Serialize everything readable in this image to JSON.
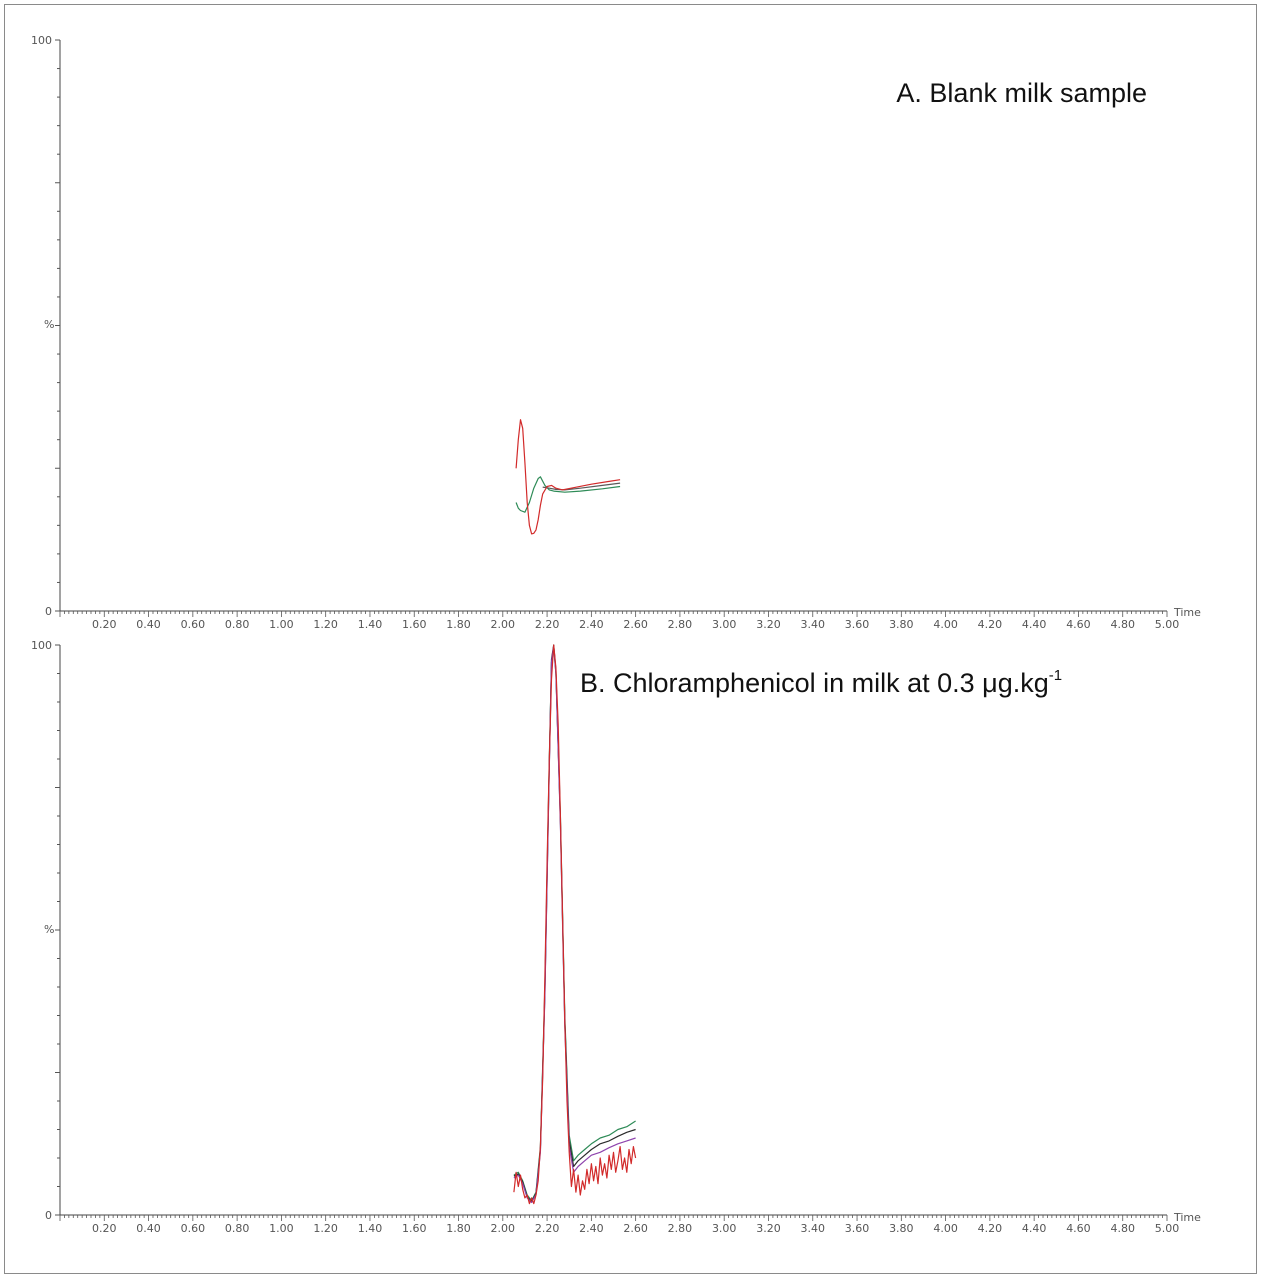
{
  "chart_data": [
    {
      "type": "line",
      "title": "A. Blank milk sample",
      "title_sup": "",
      "xlabel": "Time",
      "ylabel": "%",
      "xlim": [
        0,
        5.0
      ],
      "ylim": [
        0,
        100
      ],
      "x_ticks": [
        "0.20",
        "0.40",
        "0.60",
        "0.80",
        "1.00",
        "1.20",
        "1.40",
        "1.60",
        "1.80",
        "2.00",
        "2.20",
        "2.40",
        "2.60",
        "2.80",
        "3.00",
        "3.20",
        "3.40",
        "3.60",
        "3.80",
        "4.00",
        "4.20",
        "4.40",
        "4.60",
        "4.80",
        "5.00"
      ],
      "y_ticks": [
        "0",
        "100"
      ],
      "series": [
        {
          "color": "#2e8b57",
          "x": [
            2.06,
            2.07,
            2.08,
            2.1,
            2.12,
            2.14,
            2.16,
            2.17,
            2.19,
            2.21,
            2.23,
            2.28,
            2.35,
            2.45,
            2.53
          ],
          "y": [
            19.0,
            18.0,
            17.6,
            17.3,
            19.0,
            21.5,
            23.2,
            23.5,
            22.0,
            21.2,
            21.0,
            20.8,
            21.0,
            21.4,
            21.8
          ]
        },
        {
          "color": "#5a5a5a",
          "x": [
            2.18,
            2.21,
            2.24,
            2.28,
            2.35,
            2.45,
            2.53
          ],
          "y": [
            21.7,
            21.5,
            21.3,
            21.2,
            21.5,
            22.0,
            22.4
          ]
        },
        {
          "color": "#d22a2a",
          "x": [
            2.06,
            2.07,
            2.08,
            2.09,
            2.1,
            2.11,
            2.12,
            2.13,
            2.14,
            2.15,
            2.16,
            2.17,
            2.18,
            2.2,
            2.22,
            2.24,
            2.27,
            2.32,
            2.4,
            2.48,
            2.53
          ],
          "y": [
            25.0,
            30.0,
            33.5,
            32.0,
            26.0,
            19.0,
            15.0,
            13.5,
            13.6,
            14.2,
            16.0,
            18.5,
            20.5,
            21.8,
            22.0,
            21.5,
            21.2,
            21.6,
            22.2,
            22.7,
            23.0
          ]
        }
      ]
    },
    {
      "type": "line",
      "title": "B. Chloramphenicol in milk at 0.3 μg.kg",
      "title_sup": "-1",
      "xlabel": "Time",
      "ylabel": "%",
      "xlim": [
        0,
        5.0
      ],
      "ylim": [
        0,
        100
      ],
      "x_ticks": [
        "0.20",
        "0.40",
        "0.60",
        "0.80",
        "1.00",
        "1.20",
        "1.40",
        "1.60",
        "1.80",
        "2.00",
        "2.20",
        "2.40",
        "2.60",
        "2.80",
        "3.00",
        "3.20",
        "3.40",
        "3.60",
        "3.80",
        "4.00",
        "4.20",
        "4.40",
        "4.60",
        "4.80",
        "5.00"
      ],
      "y_ticks": [
        "0",
        "100"
      ],
      "series": [
        {
          "color": "#2e8b57",
          "x": [
            2.05,
            2.07,
            2.09,
            2.11,
            2.13,
            2.15,
            2.17,
            2.19,
            2.21,
            2.22,
            2.23,
            2.24,
            2.26,
            2.28,
            2.3,
            2.32,
            2.34,
            2.37,
            2.4,
            2.44,
            2.48,
            2.52,
            2.56,
            2.6
          ],
          "y": [
            7.0,
            7.5,
            6.0,
            3.5,
            2.5,
            4.0,
            12.0,
            40.0,
            80.0,
            97.0,
            99.5,
            95.0,
            70.0,
            35.0,
            14.0,
            9.5,
            10.5,
            11.5,
            12.5,
            13.5,
            14.0,
            15.0,
            15.5,
            16.5
          ]
        },
        {
          "color": "#2b2b2b",
          "x": [
            2.05,
            2.07,
            2.09,
            2.11,
            2.13,
            2.15,
            2.17,
            2.19,
            2.21,
            2.22,
            2.23,
            2.24,
            2.26,
            2.28,
            2.3,
            2.32,
            2.34,
            2.37,
            2.4,
            2.44,
            2.48,
            2.52,
            2.56,
            2.6
          ],
          "y": [
            6.8,
            7.2,
            5.8,
            3.2,
            2.3,
            3.8,
            11.5,
            39.0,
            79.0,
            97.5,
            100.0,
            95.5,
            69.0,
            34.0,
            13.0,
            8.5,
            9.5,
            10.5,
            11.5,
            12.5,
            13.0,
            13.8,
            14.5,
            15.0
          ]
        },
        {
          "color": "#8e44ad",
          "x": [
            2.05,
            2.07,
            2.09,
            2.11,
            2.13,
            2.15,
            2.17,
            2.19,
            2.21,
            2.22,
            2.23,
            2.24,
            2.26,
            2.28,
            2.3,
            2.32,
            2.34,
            2.37,
            2.4,
            2.44,
            2.48,
            2.52,
            2.56,
            2.6
          ],
          "y": [
            6.5,
            7.0,
            5.5,
            3.0,
            2.2,
            3.6,
            11.0,
            38.5,
            78.5,
            97.0,
            99.8,
            95.0,
            68.5,
            33.0,
            12.0,
            7.5,
            8.5,
            9.5,
            10.5,
            11.0,
            11.8,
            12.5,
            13.0,
            13.5
          ]
        },
        {
          "color": "#d22a2a",
          "x": [
            2.05,
            2.06,
            2.07,
            2.08,
            2.09,
            2.1,
            2.11,
            2.12,
            2.13,
            2.14,
            2.15,
            2.16,
            2.17,
            2.18,
            2.19,
            2.2,
            2.21,
            2.22,
            2.23,
            2.24,
            2.25,
            2.26,
            2.27,
            2.28,
            2.29,
            2.3,
            2.31,
            2.32,
            2.33,
            2.34,
            2.35,
            2.36,
            2.37,
            2.38,
            2.39,
            2.4,
            2.41,
            2.42,
            2.43,
            2.44,
            2.45,
            2.46,
            2.47,
            2.48,
            2.49,
            2.5,
            2.51,
            2.52,
            2.53,
            2.54,
            2.55,
            2.56,
            2.57,
            2.58,
            2.59,
            2.6
          ],
          "y": [
            4.0,
            7.5,
            5.0,
            7.0,
            4.5,
            3.0,
            3.5,
            2.0,
            3.0,
            2.0,
            3.5,
            6.0,
            12.0,
            24.0,
            42.0,
            62.0,
            80.0,
            94.0,
            100.0,
            96.0,
            86.0,
            70.0,
            52.0,
            34.0,
            20.0,
            11.0,
            5.0,
            8.0,
            4.0,
            7.0,
            3.5,
            6.0,
            4.5,
            8.0,
            5.5,
            9.0,
            6.0,
            8.5,
            5.5,
            10.0,
            7.0,
            9.0,
            6.5,
            10.5,
            8.0,
            11.0,
            7.5,
            9.5,
            12.0,
            8.0,
            10.0,
            7.5,
            11.5,
            9.0,
            12.0,
            10.0
          ]
        }
      ]
    }
  ]
}
